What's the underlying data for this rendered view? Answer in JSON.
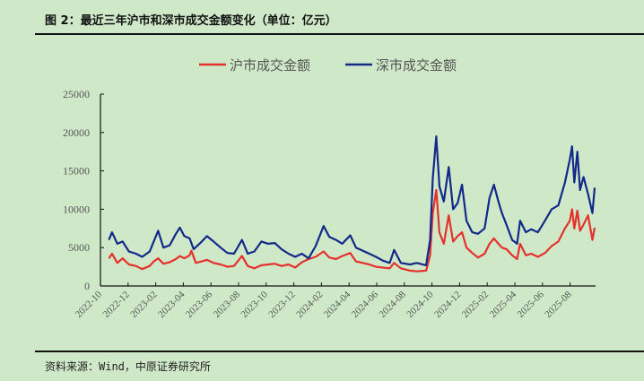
{
  "title": "图 2：最近三年沪市和深市成交金额变化（单位：亿元）",
  "source": "资料来源：Wind，中原证券研究所",
  "chart_data": {
    "type": "line",
    "title": "",
    "xlabel": "",
    "ylabel": "",
    "ylim": [
      0,
      25000
    ],
    "yticks": [
      "0",
      "5000",
      "10000",
      "15000",
      "20000",
      "25000"
    ],
    "xticks": [
      "2022-10",
      "2022-12",
      "2023-02",
      "2023-04",
      "2023-06",
      "2023-08",
      "2023-10",
      "2023-12",
      "2024-02",
      "2024-04",
      "2024-06",
      "2024-08",
      "2024-10",
      "2024-12",
      "2025-02",
      "2025-04",
      "2025-06",
      "2025-08"
    ],
    "grid": false,
    "legend_placement": "top",
    "series": [
      {
        "name": "沪市成交金额",
        "color": "#e5312b",
        "points": [
          [
            "2022-10-01",
            3600
          ],
          [
            "2022-10-08",
            4200
          ],
          [
            "2022-10-20",
            3000
          ],
          [
            "2022-11-01",
            3600
          ],
          [
            "2022-11-15",
            2800
          ],
          [
            "2022-12-01",
            2600
          ],
          [
            "2022-12-15",
            2200
          ],
          [
            "2023-01-01",
            2600
          ],
          [
            "2023-01-10",
            3200
          ],
          [
            "2023-01-20",
            3600
          ],
          [
            "2023-02-01",
            2900
          ],
          [
            "2023-02-15",
            3100
          ],
          [
            "2023-03-01",
            3500
          ],
          [
            "2023-03-10",
            3900
          ],
          [
            "2023-03-20",
            3600
          ],
          [
            "2023-04-01",
            4000
          ],
          [
            "2023-04-05",
            4600
          ],
          [
            "2023-04-15",
            3000
          ],
          [
            "2023-04-28",
            3200
          ],
          [
            "2023-05-10",
            3400
          ],
          [
            "2023-05-25",
            3000
          ],
          [
            "2023-06-10",
            2800
          ],
          [
            "2023-06-25",
            2500
          ],
          [
            "2023-07-10",
            2600
          ],
          [
            "2023-07-28",
            3900
          ],
          [
            "2023-08-10",
            2600
          ],
          [
            "2023-08-25",
            2300
          ],
          [
            "2023-09-10",
            2700
          ],
          [
            "2023-09-25",
            2800
          ],
          [
            "2023-10-10",
            2900
          ],
          [
            "2023-10-25",
            2600
          ],
          [
            "2023-11-10",
            2800
          ],
          [
            "2023-11-25",
            2400
          ],
          [
            "2023-12-10",
            3100
          ],
          [
            "2023-12-25",
            3500
          ],
          [
            "2024-01-10",
            3800
          ],
          [
            "2024-01-28",
            4500
          ],
          [
            "2024-02-10",
            3700
          ],
          [
            "2024-02-25",
            3500
          ],
          [
            "2024-03-10",
            3900
          ],
          [
            "2024-03-28",
            4300
          ],
          [
            "2024-04-10",
            3200
          ],
          [
            "2024-04-25",
            3000
          ],
          [
            "2024-05-10",
            2800
          ],
          [
            "2024-05-25",
            2500
          ],
          [
            "2024-06-10",
            2400
          ],
          [
            "2024-06-25",
            2300
          ],
          [
            "2024-07-05",
            3000
          ],
          [
            "2024-07-20",
            2300
          ],
          [
            "2024-08-10",
            2000
          ],
          [
            "2024-08-25",
            1900
          ],
          [
            "2024-09-15",
            2000
          ],
          [
            "2024-09-24",
            4000
          ],
          [
            "2024-09-30",
            9500
          ],
          [
            "2024-10-08",
            12500
          ],
          [
            "2024-10-15",
            7000
          ],
          [
            "2024-10-25",
            5500
          ],
          [
            "2024-11-05",
            9200
          ],
          [
            "2024-11-15",
            5800
          ],
          [
            "2024-11-25",
            6500
          ],
          [
            "2024-12-05",
            7000
          ],
          [
            "2024-12-15",
            5000
          ],
          [
            "2024-12-28",
            4300
          ],
          [
            "2025-01-10",
            3700
          ],
          [
            "2025-01-25",
            4200
          ],
          [
            "2025-02-05",
            5500
          ],
          [
            "2025-02-15",
            6200
          ],
          [
            "2025-02-25",
            5500
          ],
          [
            "2025-03-05",
            5000
          ],
          [
            "2025-03-15",
            4800
          ],
          [
            "2025-03-28",
            4000
          ],
          [
            "2025-04-08",
            3500
          ],
          [
            "2025-04-15",
            5500
          ],
          [
            "2025-04-28",
            4000
          ],
          [
            "2025-05-10",
            4200
          ],
          [
            "2025-05-25",
            3800
          ],
          [
            "2025-06-10",
            4300
          ],
          [
            "2025-06-25",
            5200
          ],
          [
            "2025-07-10",
            5800
          ],
          [
            "2025-07-25",
            7500
          ],
          [
            "2025-08-05",
            8500
          ],
          [
            "2025-08-10",
            10000
          ],
          [
            "2025-08-15",
            7500
          ],
          [
            "2025-08-22",
            9800
          ],
          [
            "2025-08-28",
            7200
          ],
          [
            "2025-09-05",
            8000
          ],
          [
            "2025-09-15",
            9200
          ],
          [
            "2025-09-25",
            6000
          ],
          [
            "2025-09-30",
            7600
          ]
        ]
      },
      {
        "name": "深市成交金额",
        "color": "#12298a",
        "points": [
          [
            "2022-10-01",
            6000
          ],
          [
            "2022-10-08",
            7000
          ],
          [
            "2022-10-20",
            5500
          ],
          [
            "2022-11-01",
            5800
          ],
          [
            "2022-11-15",
            4500
          ],
          [
            "2022-12-01",
            4200
          ],
          [
            "2022-12-15",
            3800
          ],
          [
            "2023-01-01",
            4500
          ],
          [
            "2023-01-10",
            5800
          ],
          [
            "2023-01-20",
            7200
          ],
          [
            "2023-02-01",
            5000
          ],
          [
            "2023-02-15",
            5300
          ],
          [
            "2023-03-01",
            6800
          ],
          [
            "2023-03-10",
            7600
          ],
          [
            "2023-03-20",
            6500
          ],
          [
            "2023-04-01",
            6200
          ],
          [
            "2023-04-10",
            4800
          ],
          [
            "2023-04-25",
            5600
          ],
          [
            "2023-05-10",
            6500
          ],
          [
            "2023-05-25",
            5800
          ],
          [
            "2023-06-10",
            5000
          ],
          [
            "2023-06-25",
            4300
          ],
          [
            "2023-07-10",
            4200
          ],
          [
            "2023-07-28",
            6000
          ],
          [
            "2023-08-10",
            4200
          ],
          [
            "2023-08-25",
            4500
          ],
          [
            "2023-09-10",
            5800
          ],
          [
            "2023-09-25",
            5500
          ],
          [
            "2023-10-10",
            5600
          ],
          [
            "2023-10-25",
            4800
          ],
          [
            "2023-11-10",
            4200
          ],
          [
            "2023-11-25",
            3800
          ],
          [
            "2023-12-10",
            4200
          ],
          [
            "2023-12-25",
            3600
          ],
          [
            "2024-01-10",
            5200
          ],
          [
            "2024-01-28",
            7800
          ],
          [
            "2024-02-10",
            6400
          ],
          [
            "2024-02-25",
            6000
          ],
          [
            "2024-03-10",
            5500
          ],
          [
            "2024-03-28",
            6600
          ],
          [
            "2024-04-10",
            5000
          ],
          [
            "2024-04-25",
            4600
          ],
          [
            "2024-05-10",
            4200
          ],
          [
            "2024-05-25",
            3800
          ],
          [
            "2024-06-10",
            3300
          ],
          [
            "2024-06-25",
            3000
          ],
          [
            "2024-07-05",
            4700
          ],
          [
            "2024-07-20",
            3000
          ],
          [
            "2024-08-10",
            2800
          ],
          [
            "2024-08-25",
            3000
          ],
          [
            "2024-09-15",
            2700
          ],
          [
            "2024-09-24",
            6000
          ],
          [
            "2024-09-30",
            14000
          ],
          [
            "2024-10-08",
            19500
          ],
          [
            "2024-10-15",
            13000
          ],
          [
            "2024-10-25",
            11000
          ],
          [
            "2024-11-05",
            15500
          ],
          [
            "2024-11-15",
            10000
          ],
          [
            "2024-11-25",
            10800
          ],
          [
            "2024-12-05",
            13200
          ],
          [
            "2024-12-15",
            8500
          ],
          [
            "2024-12-28",
            7000
          ],
          [
            "2025-01-10",
            6800
          ],
          [
            "2025-01-25",
            7500
          ],
          [
            "2025-02-05",
            11500
          ],
          [
            "2025-02-15",
            13200
          ],
          [
            "2025-02-25",
            11000
          ],
          [
            "2025-03-05",
            9500
          ],
          [
            "2025-03-15",
            8000
          ],
          [
            "2025-03-28",
            6000
          ],
          [
            "2025-04-08",
            5500
          ],
          [
            "2025-04-15",
            8500
          ],
          [
            "2025-04-28",
            7000
          ],
          [
            "2025-05-10",
            7400
          ],
          [
            "2025-05-25",
            7000
          ],
          [
            "2025-06-10",
            8500
          ],
          [
            "2025-06-25",
            10000
          ],
          [
            "2025-07-10",
            10500
          ],
          [
            "2025-07-25",
            13500
          ],
          [
            "2025-08-05",
            16500
          ],
          [
            "2025-08-10",
            18200
          ],
          [
            "2025-08-15",
            13500
          ],
          [
            "2025-08-22",
            17500
          ],
          [
            "2025-08-28",
            12500
          ],
          [
            "2025-09-05",
            14200
          ],
          [
            "2025-09-15",
            12000
          ],
          [
            "2025-09-25",
            9500
          ],
          [
            "2025-09-30",
            12800
          ]
        ]
      }
    ]
  }
}
